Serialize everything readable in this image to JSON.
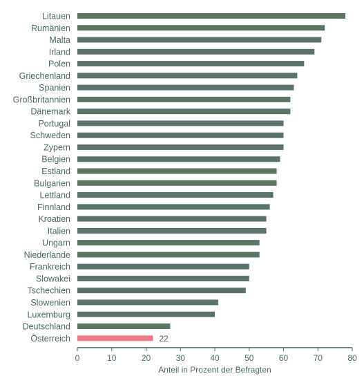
{
  "chart_data": {
    "type": "bar",
    "orientation": "horizontal",
    "categories": [
      "Litauen",
      "Rumänien",
      "Malta",
      "Irland",
      "Polen",
      "Griechenland",
      "Spanien",
      "Großbritannien",
      "Dänemark",
      "Portugal",
      "Schweden",
      "Zypern",
      "Belgien",
      "Estland",
      "Bulgarien",
      "Lettland",
      "Finnland",
      "Kroatien",
      "Italien",
      "Ungarn",
      "Niederlande",
      "Frankreich",
      "Slowakei",
      "Tschechien",
      "Slowenien",
      "Luxemburg",
      "Deutschland",
      "Österreich"
    ],
    "values": [
      78,
      72,
      71,
      69,
      66,
      64,
      63,
      62,
      62,
      60,
      60,
      60,
      59,
      58,
      58,
      57,
      56,
      55,
      55,
      53,
      53,
      50,
      50,
      49,
      41,
      40,
      27,
      22
    ],
    "highlight": {
      "category": "Österreich",
      "value_label": "22"
    },
    "xlabel": "Anteil in Prozent der Befragten",
    "xlim": [
      0,
      80
    ],
    "xticks": [
      "0",
      "10",
      "20",
      "30",
      "40",
      "50",
      "60",
      "70",
      "80"
    ],
    "grid": false,
    "colors": {
      "bar": "#5a7565",
      "highlight": "#f07b84",
      "text": "#4a6b5c",
      "axis": "#4a6b5c"
    }
  }
}
